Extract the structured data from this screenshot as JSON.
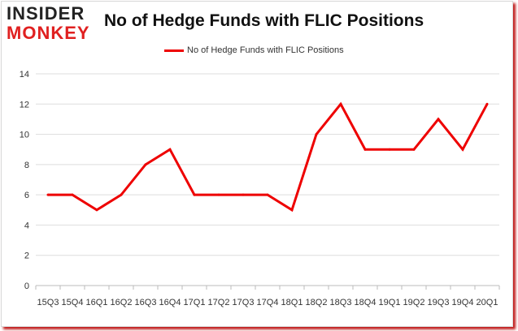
{
  "logo": {
    "line1": "INSIDER",
    "line2": "MONKEY"
  },
  "chart_data": {
    "type": "line",
    "title": "No of Hedge Funds with FLIC Positions",
    "xlabel": "",
    "ylabel": "",
    "categories": [
      "15Q3",
      "15Q4",
      "16Q1",
      "16Q2",
      "16Q3",
      "16Q4",
      "17Q1",
      "17Q2",
      "17Q3",
      "17Q4",
      "18Q1",
      "18Q2",
      "18Q3",
      "18Q4",
      "19Q1",
      "19Q2",
      "19Q3",
      "19Q4",
      "20Q1"
    ],
    "series": [
      {
        "name": "No of Hedge Funds with FLIC Positions",
        "color": "#ee0000",
        "values": [
          6,
          6,
          5,
          6,
          8,
          9,
          6,
          6,
          6,
          6,
          5,
          10,
          12,
          9,
          9,
          9,
          11,
          9,
          12
        ]
      }
    ],
    "ylim": [
      0,
      14
    ],
    "yticks": [
      0,
      2,
      4,
      6,
      8,
      10,
      12,
      14
    ],
    "grid": true,
    "legend": "top-center"
  }
}
